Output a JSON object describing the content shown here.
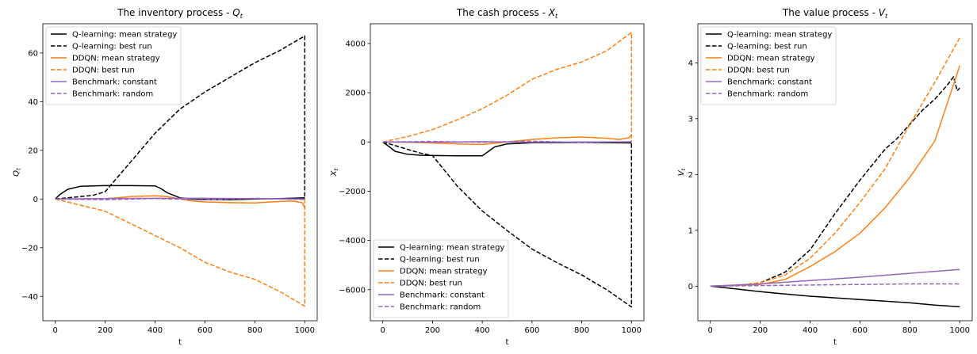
{
  "colors": {
    "q_learning": "#000000",
    "ddqn": "#ff7f0e",
    "benchmark": "#9467bd"
  },
  "chart_data": [
    {
      "type": "line",
      "title": "The inventory process - ",
      "title_var": "Q",
      "title_sub": "t",
      "xlabel": "t",
      "ylabel_var": "Q",
      "ylabel_sub": "t",
      "xlim": [
        -50,
        1050
      ],
      "ylim": [
        -50,
        72
      ],
      "xticks": [
        0,
        200,
        400,
        600,
        800,
        1000
      ],
      "yticks": [
        -40,
        -20,
        0,
        20,
        40,
        60
      ],
      "xtick_labels": [
        "0",
        "200",
        "400",
        "600",
        "800",
        "1000"
      ],
      "ytick_labels": [
        "−40",
        "−20",
        "0",
        "20",
        "40",
        "60"
      ],
      "legend_position": "upper left",
      "grid": false,
      "series": [
        {
          "name": "Q-learning: mean strategy",
          "color": "#000000",
          "dash": "solid",
          "points": [
            [
              0,
              0
            ],
            [
              20,
              2
            ],
            [
              50,
              4
            ],
            [
              100,
              5.2
            ],
            [
              150,
              5.4
            ],
            [
              200,
              5.5
            ],
            [
              300,
              5.5
            ],
            [
              400,
              5.4
            ],
            [
              420,
              4.5
            ],
            [
              450,
              2.5
            ],
            [
              500,
              0.5
            ],
            [
              550,
              0
            ],
            [
              600,
              -0.2
            ],
            [
              700,
              -0.3
            ],
            [
              800,
              0
            ],
            [
              900,
              0.2
            ],
            [
              1000,
              0.5
            ]
          ]
        },
        {
          "name": "Q-learning: best run",
          "color": "#000000",
          "dash": "dashed",
          "points": [
            [
              0,
              0
            ],
            [
              50,
              0.5
            ],
            [
              100,
              1
            ],
            [
              150,
              1.5
            ],
            [
              200,
              3
            ],
            [
              300,
              15
            ],
            [
              400,
              27
            ],
            [
              500,
              37
            ],
            [
              600,
              44
            ],
            [
              700,
              50
            ],
            [
              800,
              56
            ],
            [
              900,
              61
            ],
            [
              1000,
              67
            ],
            [
              1000,
              0
            ]
          ]
        },
        {
          "name": "DDQN: mean strategy",
          "color": "#ff7f0e",
          "dash": "solid",
          "points": [
            [
              0,
              0
            ],
            [
              100,
              0
            ],
            [
              200,
              0.2
            ],
            [
              250,
              0.5
            ],
            [
              300,
              1
            ],
            [
              400,
              1.3
            ],
            [
              450,
              1
            ],
            [
              500,
              0
            ],
            [
              550,
              -0.8
            ],
            [
              600,
              -1.2
            ],
            [
              700,
              -1.5
            ],
            [
              800,
              -1.6
            ],
            [
              900,
              -1
            ],
            [
              950,
              -0.8
            ],
            [
              990,
              -1.5
            ],
            [
              1000,
              -3.5
            ]
          ]
        },
        {
          "name": "DDQN: best run",
          "color": "#ff7f0e",
          "dash": "dashed",
          "points": [
            [
              0,
              0
            ],
            [
              100,
              -2.5
            ],
            [
              200,
              -5
            ],
            [
              300,
              -10
            ],
            [
              400,
              -15
            ],
            [
              500,
              -20
            ],
            [
              600,
              -26
            ],
            [
              700,
              -30
            ],
            [
              800,
              -33
            ],
            [
              900,
              -38
            ],
            [
              1000,
              -44
            ],
            [
              1000,
              0
            ]
          ]
        },
        {
          "name": "Benchmark: constant",
          "color": "#9467bd",
          "dash": "solid",
          "points": [
            [
              0,
              0
            ],
            [
              200,
              0.2
            ],
            [
              400,
              0.3
            ],
            [
              600,
              0.3
            ],
            [
              800,
              0.2
            ],
            [
              1000,
              0
            ]
          ]
        },
        {
          "name": "Benchmark: random",
          "color": "#9467bd",
          "dash": "dashed",
          "points": [
            [
              0,
              0
            ],
            [
              200,
              -0.3
            ],
            [
              400,
              0.2
            ],
            [
              600,
              -0.4
            ],
            [
              800,
              0.3
            ],
            [
              1000,
              -0.2
            ]
          ]
        }
      ]
    },
    {
      "type": "line",
      "title": "The cash process - ",
      "title_var": "X",
      "title_sub": "t",
      "xlabel": "t",
      "ylabel_var": "X",
      "ylabel_sub": "t",
      "xlim": [
        -50,
        1050
      ],
      "ylim": [
        -7260,
        4800
      ],
      "xticks": [
        0,
        200,
        400,
        600,
        800,
        1000
      ],
      "yticks": [
        -6000,
        -4000,
        -2000,
        0,
        2000,
        4000
      ],
      "xtick_labels": [
        "0",
        "200",
        "400",
        "600",
        "800",
        "1000"
      ],
      "ytick_labels": [
        "−6000",
        "−4000",
        "−2000",
        "0",
        "2000",
        "4000"
      ],
      "legend_position": "lower left",
      "grid": false,
      "series": [
        {
          "name": "Q-learning: mean strategy",
          "color": "#000000",
          "dash": "solid",
          "points": [
            [
              0,
              0
            ],
            [
              20,
              -150
            ],
            [
              50,
              -380
            ],
            [
              100,
              -500
            ],
            [
              150,
              -540
            ],
            [
              200,
              -550
            ],
            [
              300,
              -560
            ],
            [
              400,
              -560
            ],
            [
              420,
              -420
            ],
            [
              450,
              -200
            ],
            [
              500,
              -80
            ],
            [
              600,
              -30
            ],
            [
              800,
              -20
            ],
            [
              1000,
              -40
            ]
          ]
        },
        {
          "name": "Q-learning: best run",
          "color": "#000000",
          "dash": "dashed",
          "points": [
            [
              0,
              0
            ],
            [
              50,
              -150
            ],
            [
              100,
              -300
            ],
            [
              150,
              -450
            ],
            [
              200,
              -550
            ],
            [
              300,
              -1800
            ],
            [
              400,
              -2800
            ],
            [
              500,
              -3600
            ],
            [
              600,
              -4350
            ],
            [
              700,
              -4900
            ],
            [
              800,
              -5400
            ],
            [
              900,
              -6000
            ],
            [
              1000,
              -6700
            ],
            [
              1000,
              0
            ]
          ]
        },
        {
          "name": "DDQN: mean strategy",
          "color": "#ff7f0e",
          "dash": "solid",
          "points": [
            [
              0,
              0
            ],
            [
              100,
              -10
            ],
            [
              200,
              -40
            ],
            [
              300,
              -80
            ],
            [
              400,
              -100
            ],
            [
              500,
              0
            ],
            [
              600,
              100
            ],
            [
              700,
              170
            ],
            [
              800,
              200
            ],
            [
              900,
              150
            ],
            [
              950,
              100
            ],
            [
              990,
              170
            ],
            [
              1000,
              300
            ]
          ]
        },
        {
          "name": "DDQN: best run",
          "color": "#ff7f0e",
          "dash": "dashed",
          "points": [
            [
              0,
              0
            ],
            [
              100,
              220
            ],
            [
              200,
              500
            ],
            [
              300,
              900
            ],
            [
              400,
              1350
            ],
            [
              500,
              1900
            ],
            [
              600,
              2550
            ],
            [
              700,
              2950
            ],
            [
              800,
              3250
            ],
            [
              900,
              3700
            ],
            [
              1000,
              4450
            ],
            [
              1000,
              0
            ]
          ]
        },
        {
          "name": "Benchmark: constant",
          "color": "#9467bd",
          "dash": "solid",
          "points": [
            [
              0,
              0
            ],
            [
              200,
              -10
            ],
            [
              400,
              10
            ],
            [
              600,
              -10
            ],
            [
              800,
              0
            ],
            [
              1000,
              0
            ]
          ]
        },
        {
          "name": "Benchmark: random",
          "color": "#9467bd",
          "dash": "dashed",
          "points": [
            [
              0,
              0
            ],
            [
              200,
              20
            ],
            [
              400,
              -10
            ],
            [
              600,
              30
            ],
            [
              800,
              -20
            ],
            [
              1000,
              10
            ]
          ]
        }
      ]
    },
    {
      "type": "line",
      "title": "The value process - ",
      "title_var": "V",
      "title_sub": "t",
      "xlabel": "t",
      "ylabel_var": "V",
      "ylabel_sub": "t",
      "xlim": [
        -50,
        1050
      ],
      "ylim": [
        -0.62,
        4.7
      ],
      "xticks": [
        0,
        200,
        400,
        600,
        800,
        1000
      ],
      "yticks": [
        0,
        1,
        2,
        3,
        4
      ],
      "xtick_labels": [
        "0",
        "200",
        "400",
        "600",
        "800",
        "1000"
      ],
      "ytick_labels": [
        "0",
        "1",
        "2",
        "3",
        "4"
      ],
      "legend_position": "upper left",
      "grid": false,
      "series": [
        {
          "name": "Q-learning: mean strategy",
          "color": "#000000",
          "dash": "solid",
          "points": [
            [
              0,
              0
            ],
            [
              100,
              -0.05
            ],
            [
              200,
              -0.1
            ],
            [
              300,
              -0.14
            ],
            [
              400,
              -0.18
            ],
            [
              500,
              -0.21
            ],
            [
              600,
              -0.24
            ],
            [
              700,
              -0.27
            ],
            [
              800,
              -0.3
            ],
            [
              900,
              -0.34
            ],
            [
              1000,
              -0.37
            ]
          ]
        },
        {
          "name": "Q-learning: best run",
          "color": "#000000",
          "dash": "dashed",
          "points": [
            [
              0,
              0
            ],
            [
              100,
              0.01
            ],
            [
              200,
              0.06
            ],
            [
              300,
              0.25
            ],
            [
              400,
              0.65
            ],
            [
              500,
              1.3
            ],
            [
              600,
              1.9
            ],
            [
              700,
              2.45
            ],
            [
              750,
              2.65
            ],
            [
              800,
              2.9
            ],
            [
              850,
              3.15
            ],
            [
              900,
              3.35
            ],
            [
              950,
              3.6
            ],
            [
              975,
              3.75
            ],
            [
              990,
              3.5
            ],
            [
              1000,
              3.55
            ]
          ]
        },
        {
          "name": "DDQN: mean strategy",
          "color": "#ff7f0e",
          "dash": "solid",
          "points": [
            [
              0,
              0
            ],
            [
              100,
              0.01
            ],
            [
              200,
              0.03
            ],
            [
              300,
              0.12
            ],
            [
              400,
              0.35
            ],
            [
              500,
              0.62
            ],
            [
              600,
              0.95
            ],
            [
              700,
              1.4
            ],
            [
              800,
              1.95
            ],
            [
              900,
              2.6
            ],
            [
              1000,
              3.95
            ]
          ]
        },
        {
          "name": "DDQN: best run",
          "color": "#ff7f0e",
          "dash": "dashed",
          "points": [
            [
              0,
              0
            ],
            [
              100,
              0.01
            ],
            [
              200,
              0.06
            ],
            [
              300,
              0.2
            ],
            [
              400,
              0.5
            ],
            [
              500,
              0.95
            ],
            [
              600,
              1.5
            ],
            [
              700,
              2.1
            ],
            [
              800,
              2.9
            ],
            [
              900,
              3.65
            ],
            [
              1000,
              4.45
            ]
          ]
        },
        {
          "name": "Benchmark: constant",
          "color": "#9467bd",
          "dash": "solid",
          "points": [
            [
              0,
              0
            ],
            [
              200,
              0.04
            ],
            [
              400,
              0.1
            ],
            [
              600,
              0.16
            ],
            [
              800,
              0.23
            ],
            [
              1000,
              0.3
            ]
          ]
        },
        {
          "name": "Benchmark: random",
          "color": "#9467bd",
          "dash": "dashed",
          "points": [
            [
              0,
              0
            ],
            [
              200,
              0.01
            ],
            [
              400,
              0.02
            ],
            [
              600,
              0.03
            ],
            [
              800,
              0.04
            ],
            [
              1000,
              0.04
            ]
          ]
        }
      ]
    }
  ]
}
